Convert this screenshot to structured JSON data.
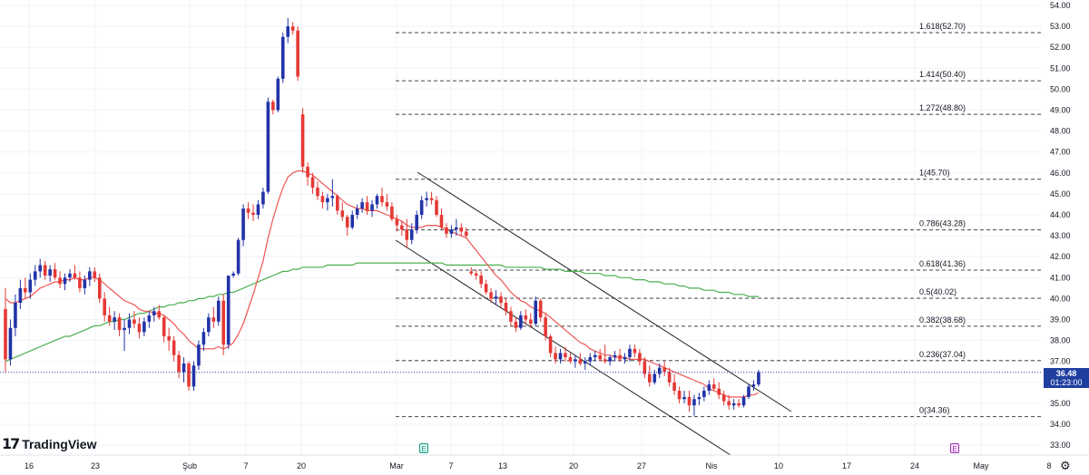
{
  "brand": {
    "logo_mark": "17",
    "name": "TradingView"
  },
  "last_price": {
    "value": "36.48",
    "countdown": "01:23:00"
  },
  "event_badges": [
    "E",
    "E"
  ],
  "icons": {
    "settings": "gear-icon"
  },
  "colors": {
    "up": "#2233a8",
    "down": "#e53935",
    "ema_short": "#f05454",
    "ema_long": "#4caf50",
    "fib_line": "#444444",
    "channel": "#222222",
    "price_tag_bg": "#1f3fa0"
  },
  "chart_data": {
    "type": "candlestick",
    "y_axis": {
      "min": 32.5,
      "max": 54.0,
      "ticks": [
        "54.00",
        "53.00",
        "52.00",
        "51.00",
        "50.00",
        "49.00",
        "48.00",
        "47.00",
        "46.00",
        "45.00",
        "44.00",
        "43.00",
        "42.00",
        "41.00",
        "40.00",
        "39.00",
        "38.00",
        "37.00",
        "36.00",
        "35.00",
        "34.00",
        "33.00"
      ]
    },
    "x_axis": {
      "ticks": [
        "16",
        "23",
        "Şub",
        "7",
        "20",
        "Mar",
        "7",
        "13",
        "20",
        "27",
        "Nis",
        "10",
        "17",
        "24",
        "May",
        "8"
      ]
    },
    "fibonacci": [
      {
        "label": "1.618(52.70)",
        "price": 52.7
      },
      {
        "label": "1.414(50.40)",
        "price": 50.4
      },
      {
        "label": "1.272(48.80)",
        "price": 48.8
      },
      {
        "label": "1(45.70)",
        "price": 45.7
      },
      {
        "label": "0.786(43.28)",
        "price": 43.28
      },
      {
        "label": "0.618(41.36)",
        "price": 41.36
      },
      {
        "label": "0.5(40.02)",
        "price": 40.02
      },
      {
        "label": "0.382(38.68)",
        "price": 38.68
      },
      {
        "label": "0.236(37.04)",
        "price": 37.04
      },
      {
        "label": "0(34.36)",
        "price": 34.36
      }
    ],
    "candles": [
      [
        39.5,
        40.5,
        36.5,
        37.1
      ],
      [
        37.1,
        39.0,
        36.8,
        38.6
      ],
      [
        38.6,
        40.2,
        38.2,
        39.8
      ],
      [
        39.8,
        40.9,
        39.5,
        40.5
      ],
      [
        40.5,
        41.0,
        40.0,
        40.3
      ],
      [
        40.3,
        41.2,
        40.0,
        40.9
      ],
      [
        40.9,
        41.6,
        40.6,
        41.3
      ],
      [
        41.3,
        41.9,
        41.0,
        41.6
      ],
      [
        41.6,
        41.8,
        40.9,
        41.1
      ],
      [
        41.1,
        41.6,
        40.8,
        41.4
      ],
      [
        41.4,
        41.7,
        40.9,
        41.0
      ],
      [
        41.0,
        41.3,
        40.5,
        40.7
      ],
      [
        40.7,
        41.2,
        40.4,
        41.0
      ],
      [
        41.0,
        41.4,
        40.8,
        41.2
      ],
      [
        41.2,
        41.6,
        40.9,
        41.0
      ],
      [
        41.0,
        41.3,
        40.3,
        40.5
      ],
      [
        40.5,
        41.1,
        40.2,
        40.9
      ],
      [
        40.9,
        41.5,
        40.6,
        41.3
      ],
      [
        41.3,
        41.5,
        40.8,
        41.0
      ],
      [
        41.0,
        41.2,
        39.8,
        40.0
      ],
      [
        40.0,
        40.3,
        38.9,
        39.2
      ],
      [
        39.2,
        39.6,
        38.7,
        38.9
      ],
      [
        38.9,
        39.4,
        38.5,
        39.1
      ],
      [
        39.1,
        39.3,
        38.2,
        38.5
      ],
      [
        38.5,
        39.0,
        37.5,
        38.6
      ],
      [
        38.6,
        39.3,
        38.3,
        39.0
      ],
      [
        39.0,
        39.4,
        38.6,
        38.8
      ],
      [
        38.8,
        39.1,
        38.1,
        38.4
      ],
      [
        38.4,
        39.1,
        38.2,
        38.9
      ],
      [
        38.9,
        39.4,
        38.6,
        39.2
      ],
      [
        39.2,
        39.6,
        38.9,
        39.4
      ],
      [
        39.4,
        39.7,
        39.0,
        39.1
      ],
      [
        39.1,
        39.2,
        37.9,
        38.2
      ],
      [
        38.2,
        38.6,
        37.5,
        38.0
      ],
      [
        38.0,
        38.2,
        37.0,
        37.3
      ],
      [
        37.3,
        37.5,
        36.2,
        36.5
      ],
      [
        36.5,
        37.2,
        36.0,
        36.9
      ],
      [
        36.9,
        37.0,
        35.6,
        35.8
      ],
      [
        35.8,
        37.0,
        35.6,
        36.8
      ],
      [
        36.8,
        38.0,
        36.6,
        37.8
      ],
      [
        37.8,
        38.6,
        37.5,
        38.4
      ],
      [
        38.4,
        39.3,
        38.2,
        39.1
      ],
      [
        39.1,
        39.6,
        38.6,
        38.9
      ],
      [
        38.9,
        40.1,
        38.7,
        39.9
      ],
      [
        39.9,
        40.2,
        37.3,
        37.8
      ],
      [
        37.8,
        41.1,
        37.6,
        41.1
      ],
      [
        41.1,
        41.3,
        41.0,
        41.2
      ],
      [
        41.2,
        42.9,
        41.1,
        42.8
      ],
      [
        42.8,
        44.5,
        42.5,
        44.3
      ],
      [
        44.3,
        44.6,
        43.8,
        44.1
      ],
      [
        44.1,
        44.5,
        43.7,
        44.0
      ],
      [
        44.0,
        44.7,
        43.8,
        44.5
      ],
      [
        44.5,
        45.3,
        44.3,
        45.1
      ],
      [
        45.1,
        49.6,
        45.0,
        49.4
      ],
      [
        49.4,
        49.5,
        48.8,
        49.0
      ],
      [
        49.0,
        50.6,
        48.9,
        50.5
      ],
      [
        50.5,
        52.7,
        50.3,
        52.5
      ],
      [
        52.5,
        53.4,
        52.2,
        53.0
      ],
      [
        53.0,
        53.2,
        52.6,
        52.8
      ],
      [
        52.8,
        53.0,
        50.4,
        50.6
      ],
      [
        48.8,
        49.1,
        46.0,
        46.3
      ],
      [
        46.3,
        46.5,
        45.4,
        45.8
      ],
      [
        45.8,
        46.0,
        45.0,
        45.3
      ],
      [
        45.3,
        45.6,
        44.7,
        44.9
      ],
      [
        44.9,
        45.1,
        44.3,
        44.6
      ],
      [
        44.6,
        45.0,
        44.2,
        44.8
      ],
      [
        44.8,
        45.7,
        44.4,
        44.9
      ],
      [
        44.9,
        45.0,
        44.0,
        44.2
      ],
      [
        44.2,
        44.6,
        43.7,
        43.9
      ],
      [
        43.9,
        44.0,
        43.0,
        43.4
      ],
      [
        43.4,
        44.2,
        43.3,
        44.0
      ],
      [
        44.0,
        44.5,
        43.8,
        44.3
      ],
      [
        44.3,
        44.8,
        44.1,
        44.6
      ],
      [
        44.6,
        44.9,
        44.0,
        44.2
      ],
      [
        44.2,
        44.7,
        43.9,
        44.5
      ],
      [
        44.5,
        45.0,
        44.3,
        44.9
      ],
      [
        44.9,
        45.3,
        44.4,
        44.6
      ],
      [
        44.6,
        45.0,
        44.2,
        44.4
      ],
      [
        44.4,
        44.6,
        43.7,
        43.8
      ],
      [
        43.8,
        44.0,
        43.2,
        43.5
      ],
      [
        43.5,
        43.7,
        43.0,
        43.3
      ],
      [
        43.3,
        43.8,
        42.4,
        42.8
      ],
      [
        42.8,
        43.6,
        42.6,
        43.3
      ],
      [
        43.3,
        44.2,
        43.1,
        44.0
      ],
      [
        44.0,
        44.9,
        43.8,
        44.7
      ],
      [
        44.7,
        45.1,
        44.4,
        44.8
      ],
      [
        44.8,
        45.1,
        44.5,
        44.7
      ],
      [
        44.7,
        44.9,
        43.9,
        44.0
      ],
      [
        44.0,
        44.3,
        43.3,
        43.4
      ],
      [
        43.4,
        43.6,
        42.9,
        43.1
      ],
      [
        43.1,
        43.5,
        42.9,
        43.3
      ],
      [
        43.3,
        43.8,
        43.0,
        43.4
      ],
      [
        43.4,
        43.6,
        43.0,
        43.2
      ],
      [
        43.2,
        43.4,
        42.9,
        43.0
      ],
      [
        41.3,
        41.5,
        41.1,
        41.2
      ],
      [
        41.2,
        41.4,
        40.9,
        41.1
      ],
      [
        41.1,
        41.3,
        40.5,
        40.7
      ],
      [
        40.7,
        40.9,
        40.2,
        40.3
      ],
      [
        40.3,
        40.5,
        39.8,
        40.0
      ],
      [
        40.0,
        40.4,
        39.7,
        40.1
      ],
      [
        40.1,
        40.3,
        39.6,
        39.8
      ],
      [
        39.8,
        40.0,
        39.2,
        39.4
      ],
      [
        39.4,
        39.6,
        38.7,
        38.9
      ],
      [
        38.9,
        39.1,
        38.4,
        38.6
      ],
      [
        38.6,
        39.4,
        38.5,
        39.2
      ],
      [
        39.2,
        39.5,
        38.8,
        39.0
      ],
      [
        39.0,
        39.3,
        38.6,
        38.8
      ],
      [
        38.8,
        40.1,
        38.7,
        39.9
      ],
      [
        39.9,
        40.0,
        38.9,
        39.1
      ],
      [
        39.1,
        39.3,
        38.0,
        38.2
      ],
      [
        38.2,
        38.3,
        37.2,
        37.4
      ],
      [
        37.4,
        37.7,
        36.9,
        37.1
      ],
      [
        37.1,
        37.6,
        36.9,
        37.4
      ],
      [
        37.4,
        37.7,
        37.0,
        37.2
      ],
      [
        37.2,
        37.4,
        36.9,
        37.0
      ],
      [
        37.0,
        37.3,
        36.7,
        37.1
      ],
      [
        37.1,
        37.4,
        36.8,
        36.9
      ],
      [
        36.9,
        37.2,
        36.6,
        37.0
      ],
      [
        37.0,
        37.4,
        36.8,
        37.2
      ],
      [
        37.2,
        37.5,
        37.0,
        37.3
      ],
      [
        37.3,
        37.6,
        37.0,
        37.1
      ],
      [
        37.1,
        37.8,
        36.9,
        37.0
      ],
      [
        37.0,
        37.3,
        36.8,
        37.2
      ],
      [
        37.2,
        37.5,
        37.0,
        37.3
      ],
      [
        37.3,
        37.6,
        37.0,
        37.1
      ],
      [
        37.1,
        37.4,
        36.9,
        37.2
      ],
      [
        37.2,
        37.8,
        37.0,
        37.6
      ],
      [
        37.6,
        37.8,
        37.2,
        37.4
      ],
      [
        37.4,
        37.6,
        36.8,
        37.0
      ],
      [
        37.0,
        37.2,
        36.2,
        36.4
      ],
      [
        36.4,
        36.8,
        35.8,
        36.0
      ],
      [
        36.0,
        36.6,
        35.9,
        36.4
      ],
      [
        36.4,
        36.9,
        36.2,
        36.7
      ],
      [
        36.7,
        37.0,
        36.3,
        36.5
      ],
      [
        36.5,
        36.7,
        35.8,
        36.0
      ],
      [
        36.0,
        36.4,
        35.4,
        35.6
      ],
      [
        35.6,
        35.8,
        35.0,
        35.2
      ],
      [
        35.2,
        35.6,
        35.0,
        35.3
      ],
      [
        35.3,
        35.6,
        34.6,
        34.9
      ],
      [
        34.9,
        35.4,
        34.4,
        35.2
      ],
      [
        35.2,
        35.5,
        34.9,
        35.3
      ],
      [
        35.3,
        35.8,
        35.1,
        35.6
      ],
      [
        35.6,
        36.1,
        35.4,
        35.9
      ],
      [
        35.9,
        36.2,
        35.6,
        35.7
      ],
      [
        35.7,
        36.0,
        35.2,
        35.4
      ],
      [
        35.4,
        35.6,
        34.9,
        35.1
      ],
      [
        35.1,
        35.4,
        34.7,
        34.9
      ],
      [
        34.9,
        35.2,
        34.7,
        35.0
      ],
      [
        35.0,
        35.2,
        34.8,
        34.9
      ],
      [
        34.9,
        35.4,
        34.8,
        35.3
      ],
      [
        35.3,
        35.9,
        35.2,
        35.8
      ],
      [
        35.8,
        36.1,
        35.6,
        35.9
      ],
      [
        35.9,
        36.6,
        35.8,
        36.48
      ]
    ],
    "ema_short": [
      40.0,
      39.8,
      39.8,
      39.9,
      40.0,
      40.1,
      40.3,
      40.5,
      40.6,
      40.7,
      40.8,
      40.8,
      40.9,
      40.9,
      41.0,
      40.9,
      40.9,
      41.0,
      41.0,
      40.9,
      40.7,
      40.5,
      40.3,
      40.1,
      39.9,
      39.8,
      39.7,
      39.5,
      39.4,
      39.4,
      39.3,
      39.3,
      39.2,
      39.0,
      38.8,
      38.5,
      38.3,
      38.0,
      37.8,
      37.6,
      37.6,
      37.6,
      37.6,
      37.7,
      37.6,
      37.7,
      37.9,
      38.3,
      38.8,
      39.5,
      40.2,
      41.0,
      41.8,
      42.9,
      43.8,
      44.6,
      45.3,
      45.8,
      46.0,
      46.1,
      46.1,
      46.0,
      45.9,
      45.7,
      45.5,
      45.3,
      45.1,
      44.9,
      44.7,
      44.5,
      44.4,
      44.3,
      44.3,
      44.2,
      44.2,
      44.2,
      44.1,
      44.0,
      43.9,
      43.8,
      43.7,
      43.5,
      43.4,
      43.4,
      43.4,
      43.5,
      43.5,
      43.5,
      43.4,
      43.3,
      43.2,
      43.1,
      43.0,
      42.9,
      42.6,
      42.3,
      42.0,
      41.7,
      41.4,
      41.1,
      40.9,
      40.6,
      40.3,
      40.1,
      39.9,
      39.8,
      39.6,
      39.5,
      39.4,
      39.3,
      39.1,
      38.9,
      38.7,
      38.5,
      38.3,
      38.1,
      37.9,
      37.8,
      37.6,
      37.5,
      37.4,
      37.3,
      37.3,
      37.2,
      37.2,
      37.2,
      37.1,
      37.1,
      37.1,
      37.1,
      37.0,
      36.9,
      36.8,
      36.7,
      36.6,
      36.5,
      36.4,
      36.3,
      36.2,
      36.1,
      36.0,
      35.9,
      35.7,
      35.6,
      35.5,
      35.4,
      35.3,
      35.3,
      35.3,
      35.3,
      35.4,
      35.4,
      35.5
    ],
    "ema_long": [
      37.0,
      37.1,
      37.2,
      37.3,
      37.4,
      37.5,
      37.6,
      37.7,
      37.8,
      37.9,
      38.0,
      38.1,
      38.2,
      38.2,
      38.3,
      38.4,
      38.5,
      38.6,
      38.7,
      38.7,
      38.8,
      38.9,
      38.9,
      39.0,
      39.0,
      39.1,
      39.2,
      39.3,
      39.3,
      39.4,
      39.5,
      39.6,
      39.6,
      39.7,
      39.7,
      39.8,
      39.8,
      39.9,
      39.9,
      40.0,
      40.0,
      40.1,
      40.1,
      40.2,
      40.2,
      40.3,
      40.3,
      40.4,
      40.5,
      40.6,
      40.7,
      40.8,
      40.9,
      41.0,
      41.1,
      41.2,
      41.3,
      41.3,
      41.4,
      41.4,
      41.5,
      41.5,
      41.5,
      41.5,
      41.5,
      41.6,
      41.6,
      41.6,
      41.6,
      41.6,
      41.6,
      41.7,
      41.7,
      41.7,
      41.7,
      41.7,
      41.7,
      41.7,
      41.7,
      41.7,
      41.7,
      41.7,
      41.7,
      41.7,
      41.7,
      41.7,
      41.7,
      41.7,
      41.7,
      41.6,
      41.6,
      41.6,
      41.6,
      41.6,
      41.6,
      41.6,
      41.6,
      41.6,
      41.6,
      41.6,
      41.6,
      41.5,
      41.5,
      41.5,
      41.5,
      41.5,
      41.5,
      41.5,
      41.5,
      41.4,
      41.4,
      41.4,
      41.4,
      41.3,
      41.3,
      41.3,
      41.3,
      41.2,
      41.2,
      41.2,
      41.2,
      41.1,
      41.1,
      41.1,
      41.0,
      41.0,
      41.0,
      40.9,
      40.9,
      40.9,
      40.8,
      40.8,
      40.8,
      40.7,
      40.7,
      40.7,
      40.6,
      40.6,
      40.5,
      40.5,
      40.5,
      40.4,
      40.4,
      40.4,
      40.3,
      40.3,
      40.3,
      40.2,
      40.2,
      40.2,
      40.1,
      40.1,
      40.1
    ]
  }
}
